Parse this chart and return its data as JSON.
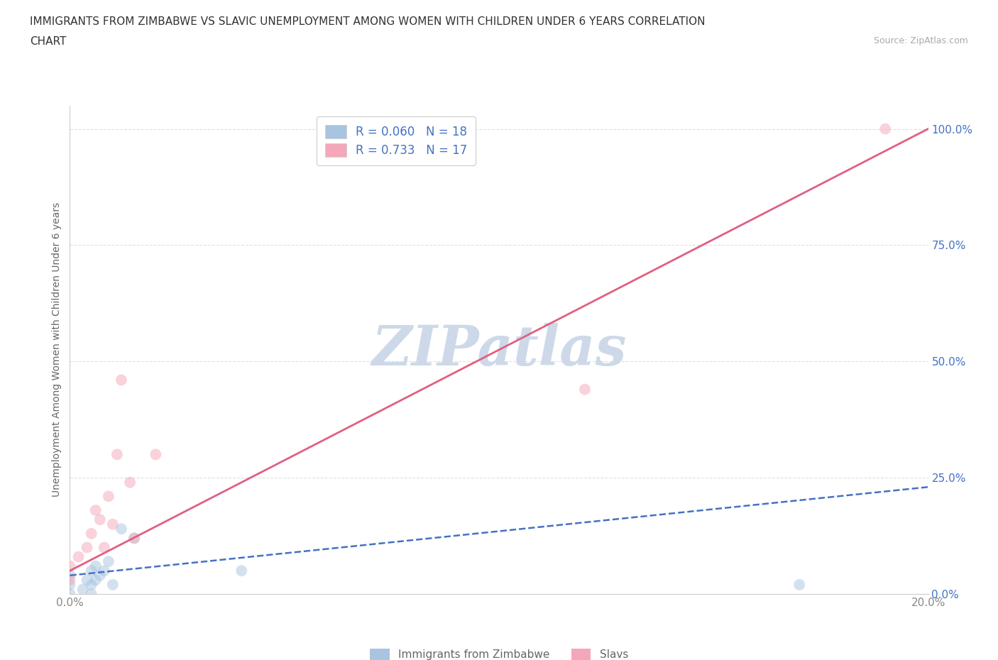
{
  "title_line1": "IMMIGRANTS FROM ZIMBABWE VS SLAVIC UNEMPLOYMENT AMONG WOMEN WITH CHILDREN UNDER 6 YEARS CORRELATION",
  "title_line2": "CHART",
  "source": "Source: ZipAtlas.com",
  "ylabel": "Unemployment Among Women with Children Under 6 years",
  "xlim": [
    0.0,
    0.2
  ],
  "ylim": [
    0.0,
    1.05
  ],
  "ytick_vals": [
    0.0,
    0.25,
    0.5,
    0.75,
    1.0
  ],
  "xtick_vals": [
    0.0,
    0.05,
    0.1,
    0.15,
    0.2
  ],
  "xtick_labels": [
    "0.0%",
    "",
    "",
    "",
    "20.0%"
  ],
  "zimbabwe_color": "#a8c4e0",
  "slavs_color": "#f4a7b9",
  "zimbabwe_line_color": "#4472c4",
  "slavs_line_color": "#e06080",
  "legend_r_color": "#4472c4",
  "background_color": "#ffffff",
  "watermark_text": "ZIPatlas",
  "watermark_color": "#cdd9e8",
  "legend_text_1": "R = 0.060   N = 18",
  "legend_text_2": "R = 0.733   N = 17",
  "zimbabwe_scatter_x": [
    0.0,
    0.0,
    0.0,
    0.003,
    0.004,
    0.005,
    0.005,
    0.005,
    0.006,
    0.006,
    0.007,
    0.008,
    0.009,
    0.01,
    0.012,
    0.015,
    0.04,
    0.17
  ],
  "zimbabwe_scatter_y": [
    0.0,
    0.02,
    0.04,
    0.01,
    0.03,
    0.0,
    0.02,
    0.05,
    0.03,
    0.06,
    0.04,
    0.05,
    0.07,
    0.02,
    0.14,
    0.12,
    0.05,
    0.02
  ],
  "slavs_scatter_x": [
    0.0,
    0.0,
    0.002,
    0.004,
    0.005,
    0.006,
    0.007,
    0.008,
    0.009,
    0.01,
    0.011,
    0.012,
    0.014,
    0.015,
    0.02,
    0.12,
    0.19
  ],
  "slavs_scatter_y": [
    0.03,
    0.06,
    0.08,
    0.1,
    0.13,
    0.18,
    0.16,
    0.1,
    0.21,
    0.15,
    0.3,
    0.46,
    0.24,
    0.12,
    0.3,
    0.44,
    1.0
  ],
  "zim_line_x0": 0.0,
  "zim_line_y0": 0.04,
  "zim_line_x1": 0.2,
  "zim_line_y1": 0.23,
  "slav_line_x0": 0.0,
  "slav_line_y0": 0.05,
  "slav_line_x1": 0.2,
  "slav_line_y1": 1.0,
  "title_fontsize": 11,
  "source_fontsize": 9,
  "ylabel_fontsize": 10,
  "scatter_size": 130,
  "scatter_alpha": 0.5,
  "grid_color": "#e0e0e0",
  "grid_linestyle": "--",
  "tick_label_color_y": "#4472c4",
  "tick_label_color_x": "#888888"
}
